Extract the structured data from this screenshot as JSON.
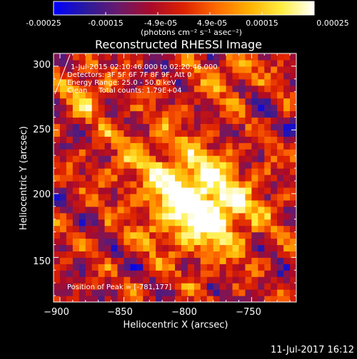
{
  "colorbar": {
    "tick_labels": [
      "-0.00025",
      "-0.00015",
      "-4.9e-05",
      "4.9e-05",
      "0.00015",
      "0.00025"
    ],
    "unit_label": "(photons cm⁻² s⁻¹ asec⁻²)",
    "range": [
      -0.00025,
      0.00025
    ],
    "colormap": [
      "#0000ff",
      "#2a1a9e",
      "#6a1a6a",
      "#aa0a2a",
      "#dd2200",
      "#ff6a00",
      "#ffb000",
      "#ffee40",
      "#ffffff"
    ]
  },
  "chart_data": {
    "type": "heatmap",
    "title": "Reconstructed RHESSI Image",
    "xlabel": "Heliocentric X (arcsec)",
    "ylabel": "Heliocentric Y (arcsec)",
    "xlim": [
      -905,
      -715
    ],
    "ylim": [
      115,
      310
    ],
    "x_ticks": [
      -900,
      -850,
      -800,
      -750
    ],
    "y_ticks": [
      150,
      200,
      250,
      300
    ],
    "x_tick_labels": [
      "−900",
      "−850",
      "−800",
      "−750"
    ],
    "y_tick_labels": [
      "150",
      "200",
      "250",
      "300"
    ],
    "peak_position": [
      -781,
      177
    ],
    "annotations": [
      "1-Jul-2015 02:10:46.000 to 02:20:46.000",
      "Detectors: 3F 5F 6F 7F 8F 9F, Att 0",
      "Energy Range: 25.0 - 50.0 keV",
      "Clean     Total counts: 1.79E+04",
      "Position of Peak = [-781,177]"
    ]
  },
  "footer": {
    "date_time": "11-Jul-2017 16:12"
  }
}
